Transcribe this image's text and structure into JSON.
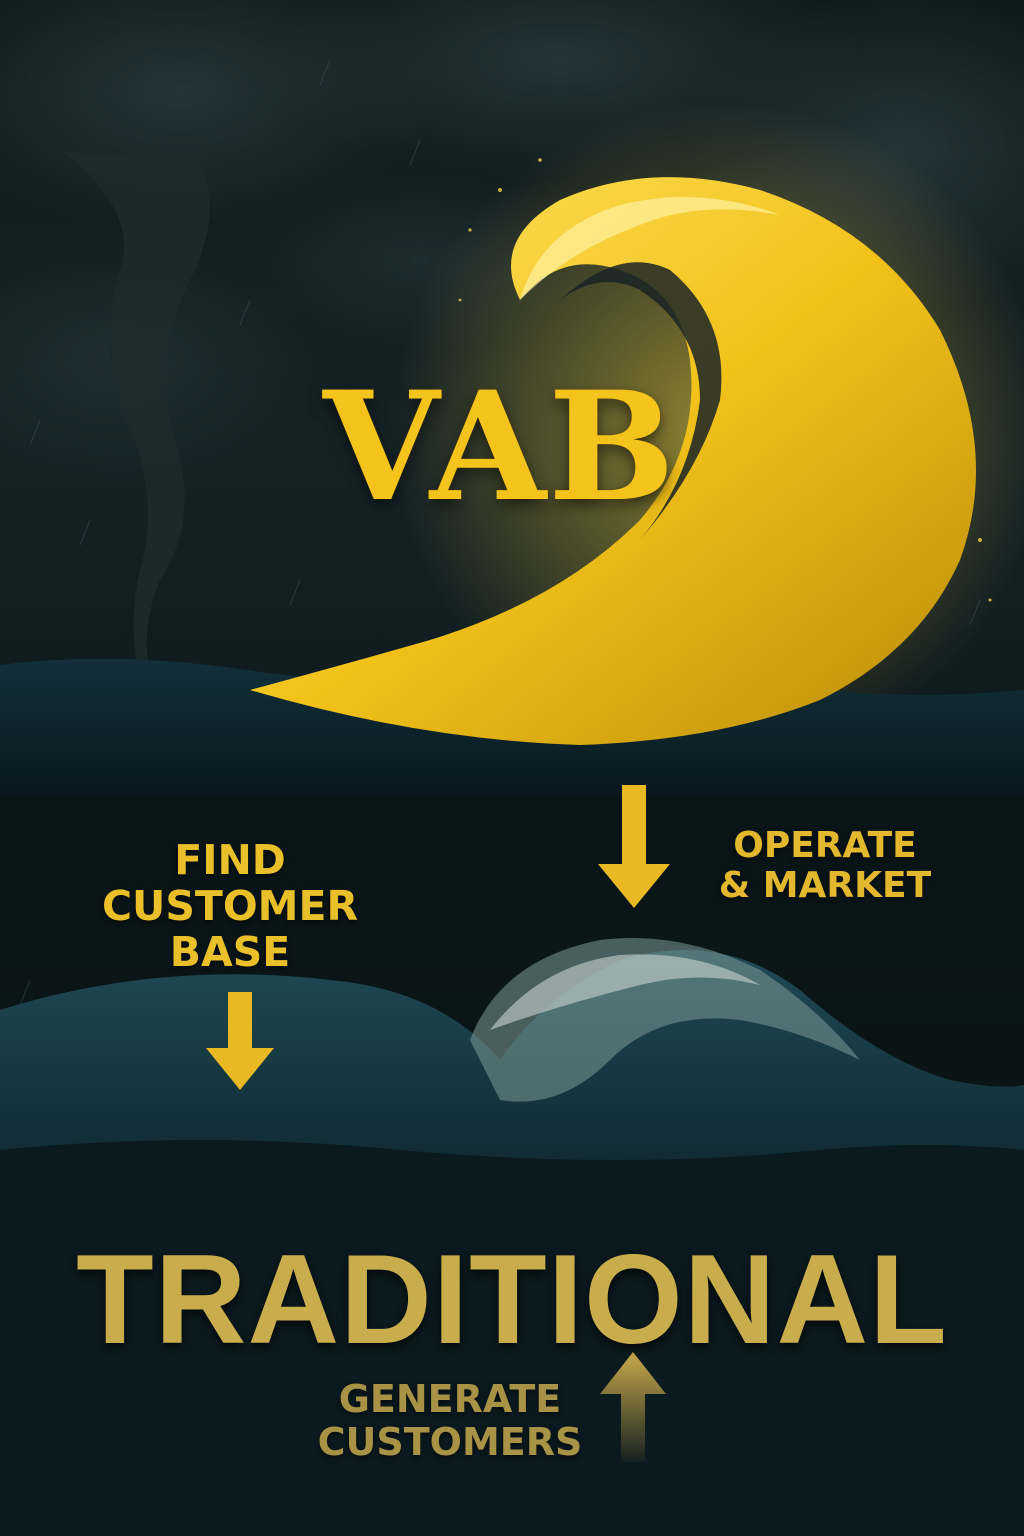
{
  "poster": {
    "vab_title": "VAB",
    "find_label": "FIND\nCUSTOMER\nBASE",
    "operate_label": "OPERATE\n& MARKET",
    "traditional_title": "TRADITIONAL",
    "generate_label": "GENERATE\nCUSTOMERS"
  },
  "icons": {
    "find_arrow": "arrow-down-icon",
    "operate_arrow": "arrow-down-icon",
    "generate_arrow": "arrow-up-icon"
  },
  "colors": {
    "gold_bright": "#f6cf1e",
    "gold_text": "#e8c23a",
    "gold_muted": "#c9a94a",
    "sky_dark": "#0f1a1d",
    "sea_dark": "#0a1a20",
    "foam": "#b9c7c4"
  }
}
